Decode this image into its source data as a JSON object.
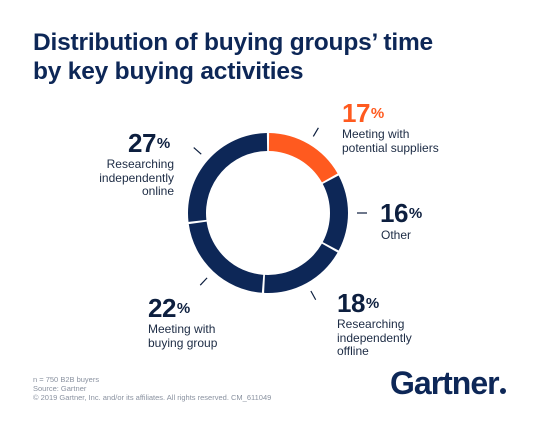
{
  "title_lines": [
    "Distribution of buying groups’ time",
    "by key buying activities"
  ],
  "chart_data": {
    "type": "pie",
    "donut": true,
    "title": "Distribution of buying groups’ time by key buying activities",
    "segments": [
      {
        "value": 17,
        "percent_label": "17",
        "label_lines": [
          "Meeting with",
          "potential suppliers"
        ],
        "color": "#ff5a1f"
      },
      {
        "value": 16,
        "percent_label": "16",
        "label_lines": [
          "Other"
        ],
        "color": "#0d2757"
      },
      {
        "value": 18,
        "percent_label": "18",
        "label_lines": [
          "Researching",
          "independently",
          "offline"
        ],
        "color": "#0d2757"
      },
      {
        "value": 22,
        "percent_label": "22",
        "label_lines": [
          "Meeting with",
          "buying group"
        ],
        "color": "#0d2757"
      },
      {
        "value": 27,
        "percent_label": "27",
        "label_lines": [
          "Researching",
          "independently",
          "online"
        ],
        "color": "#0d2757"
      }
    ],
    "percent_sign": "%"
  },
  "footnote_lines": [
    "n = 750 B2B buyers",
    "Source: Gartner",
    "© 2019 Gartner, Inc. and/or its affiliates. All rights reserved. CM_611049"
  ],
  "logo_text": "Gartner"
}
